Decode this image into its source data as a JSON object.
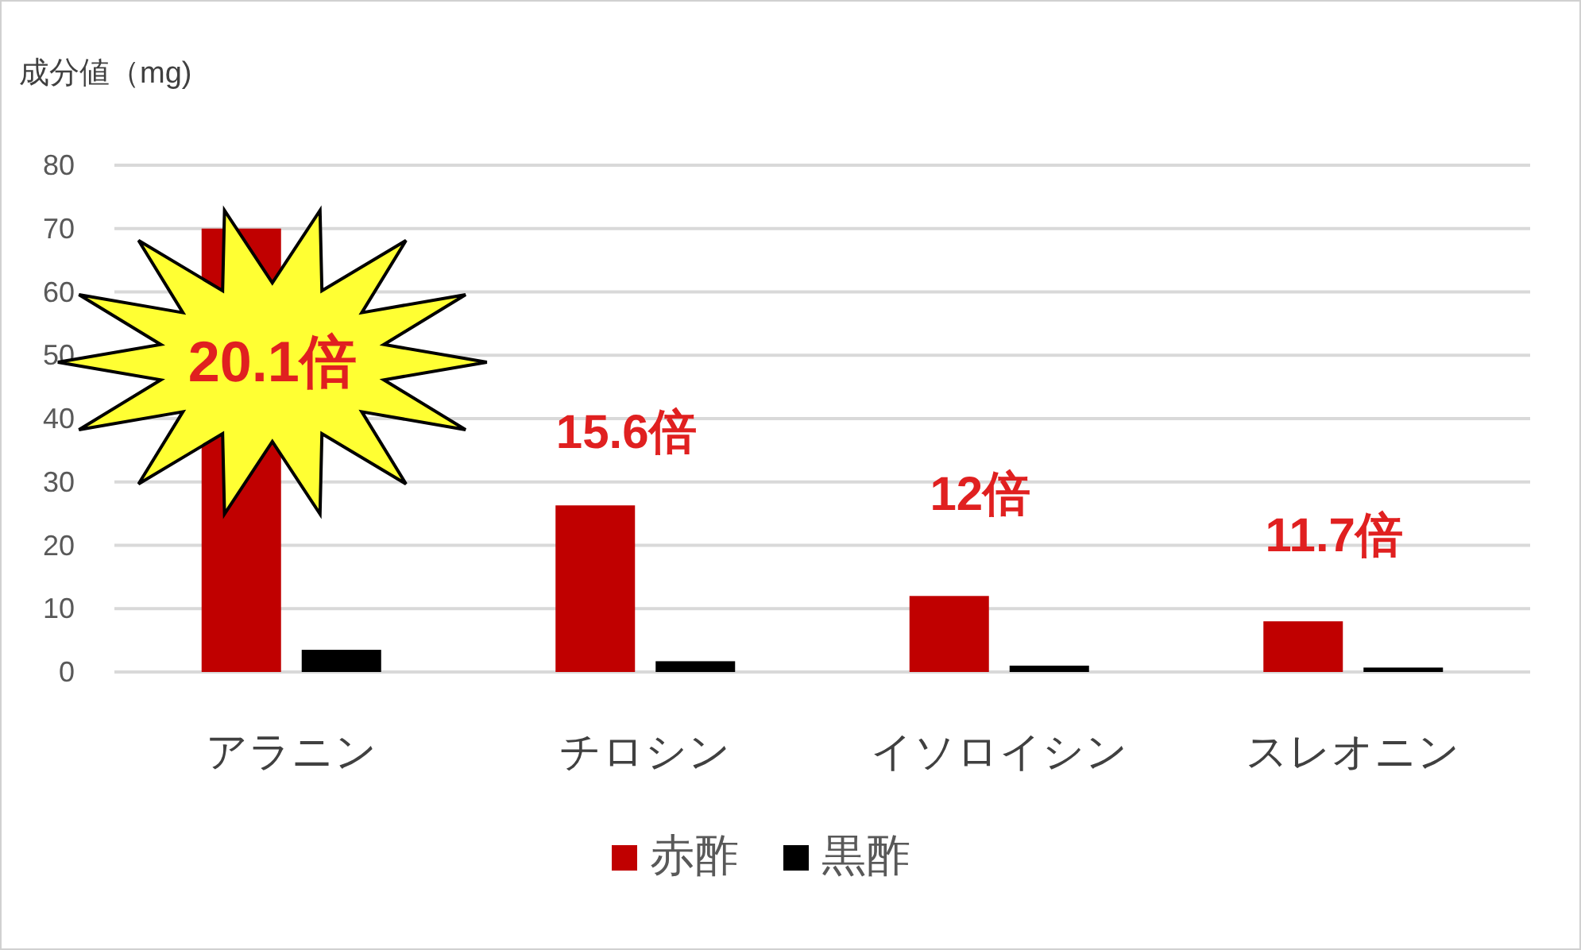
{
  "chart_data": {
    "type": "bar",
    "ylabel": "成分値（mg)",
    "categories": [
      "アラニン",
      "チロシン",
      "イソロイシン",
      "スレオニン"
    ],
    "series": [
      {
        "name": "赤酢",
        "color": "#c00000",
        "values": [
          70,
          26.3,
          12,
          8
        ]
      },
      {
        "name": "黒酢",
        "color": "#000000",
        "values": [
          3.5,
          1.7,
          1,
          0.7
        ]
      }
    ],
    "ylim": [
      0,
      80
    ],
    "yticks": [
      0,
      10,
      20,
      30,
      40,
      50,
      60,
      70,
      80
    ],
    "grid": "y",
    "legend": "bottom",
    "annotations": [
      "20.1倍",
      "15.6倍",
      "12倍",
      "11.7倍"
    ]
  }
}
